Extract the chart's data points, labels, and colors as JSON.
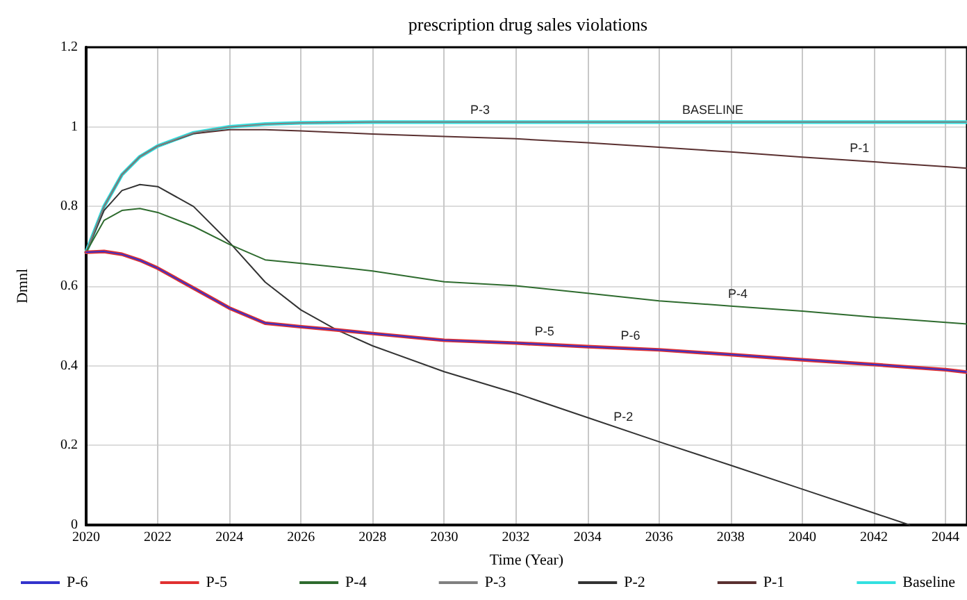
{
  "chart_data": {
    "type": "line",
    "title": "prescription drug sales violations",
    "xlabel": "Time (Year)",
    "ylabel": "Dmnl",
    "x": [
      2020,
      2020.5,
      2021,
      2021.5,
      2022,
      2023,
      2024,
      2025,
      2026,
      2027,
      2028,
      2030,
      2032,
      2034,
      2036,
      2038,
      2040,
      2042,
      2044,
      2044.6
    ],
    "series": [
      {
        "name": "P-6",
        "color": "#3333cc",
        "values": [
          0.685,
          0.687,
          0.68,
          0.665,
          0.645,
          0.595,
          0.545,
          0.507,
          0.498,
          0.49,
          0.481,
          0.464,
          0.457,
          0.448,
          0.44,
          0.428,
          0.415,
          0.403,
          0.39,
          0.384
        ]
      },
      {
        "name": "P-5",
        "color": "#e03030",
        "values": [
          0.685,
          0.687,
          0.68,
          0.665,
          0.645,
          0.595,
          0.545,
          0.507,
          0.498,
          0.49,
          0.481,
          0.464,
          0.457,
          0.448,
          0.44,
          0.428,
          0.415,
          0.403,
          0.39,
          0.384
        ]
      },
      {
        "name": "P-4",
        "color": "#2e6b2e",
        "values": [
          0.685,
          0.765,
          0.79,
          0.795,
          0.785,
          0.75,
          0.705,
          0.666,
          0.657,
          0.648,
          0.638,
          0.611,
          0.601,
          0.582,
          0.563,
          0.55,
          0.537,
          0.522,
          0.509,
          0.505
        ]
      },
      {
        "name": "P-3",
        "color": "#808080",
        "values": [
          0.685,
          0.8,
          0.88,
          0.925,
          0.952,
          0.985,
          1.0,
          1.007,
          1.01,
          1.011,
          1.012,
          1.012,
          1.012,
          1.012,
          1.012,
          1.012,
          1.012,
          1.012,
          1.012,
          1.012
        ]
      },
      {
        "name": "P-2",
        "color": "#333333",
        "x": [
          2020,
          2020.5,
          2021,
          2021.5,
          2022,
          2023,
          2024,
          2025,
          2026,
          2027,
          2028,
          2030,
          2032,
          2034,
          2036,
          2038,
          2040,
          2042,
          2043
        ],
        "values": [
          0.685,
          0.79,
          0.84,
          0.855,
          0.85,
          0.8,
          0.71,
          0.61,
          0.54,
          0.49,
          0.45,
          0.385,
          0.331,
          0.27,
          0.209,
          0.15,
          0.09,
          0.03,
          0
        ]
      },
      {
        "name": "P-1",
        "color": "#5a3030",
        "values": [
          0.685,
          0.8,
          0.88,
          0.925,
          0.952,
          0.983,
          0.993,
          0.993,
          0.99,
          0.986,
          0.982,
          0.976,
          0.97,
          0.96,
          0.949,
          0.937,
          0.924,
          0.912,
          0.9,
          0.896
        ]
      },
      {
        "name": "Baseline",
        "color": "#33e0e0",
        "values": [
          0.685,
          0.8,
          0.88,
          0.925,
          0.952,
          0.985,
          1.0,
          1.007,
          1.01,
          1.011,
          1.012,
          1.012,
          1.012,
          1.012,
          1.012,
          1.012,
          1.012,
          1.012,
          1.012,
          1.012
        ]
      }
    ],
    "annotations": [
      {
        "text": "P-3",
        "x": 2031,
        "y": 1.012
      },
      {
        "text": "BASELINE",
        "x": 2037.5,
        "y": 1.012
      },
      {
        "text": "P-1",
        "x": 2041.6,
        "y": 0.915
      },
      {
        "text": "P-4",
        "x": 2038.2,
        "y": 0.55
      },
      {
        "text": "P-5",
        "x": 2032.8,
        "y": 0.455
      },
      {
        "text": "P-6",
        "x": 2035.2,
        "y": 0.444
      },
      {
        "text": "P-2",
        "x": 2035,
        "y": 0.24
      }
    ],
    "xlim": [
      2020,
      2044.6
    ],
    "xticks": [
      2020,
      2022,
      2024,
      2026,
      2028,
      2030,
      2032,
      2034,
      2036,
      2038,
      2040,
      2042,
      2044
    ],
    "ylim": [
      0,
      1.2
    ],
    "yticks": [
      0,
      0.2,
      0.4,
      0.6,
      0.8,
      1,
      1.2
    ],
    "grid": true,
    "legend": "bottom",
    "marker": "none",
    "line_style": "solid"
  }
}
